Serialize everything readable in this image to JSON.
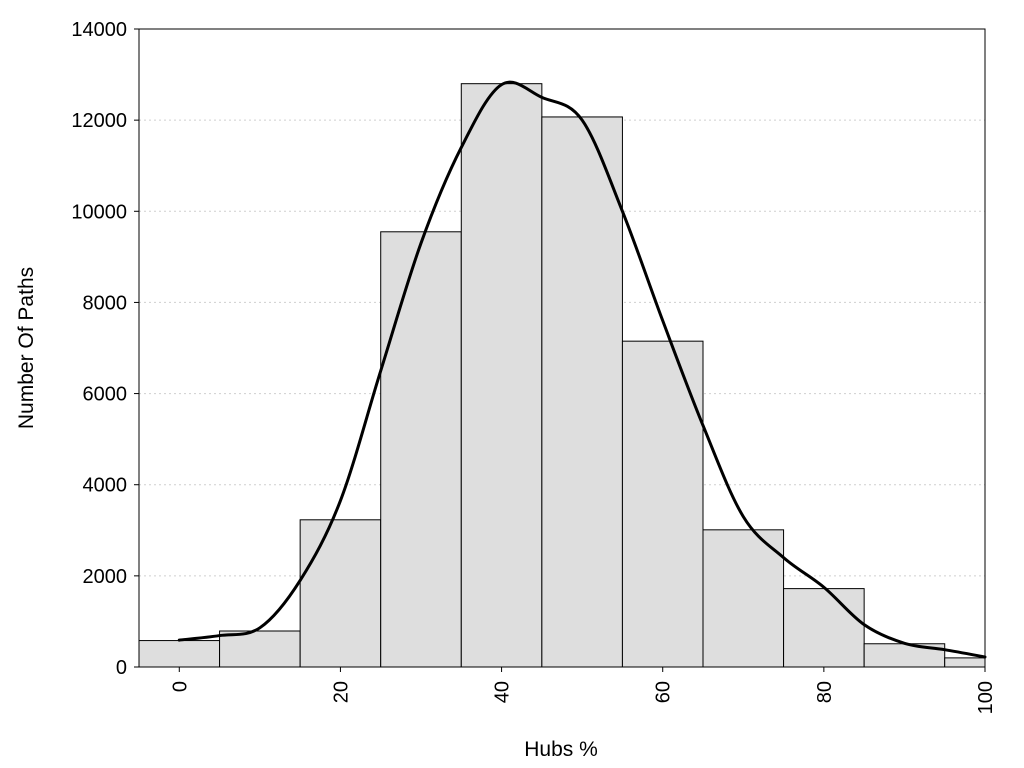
{
  "chart_data": {
    "type": "bar",
    "xlabel": "Hubs %",
    "ylabel": "Number Of Paths",
    "xlim": [
      -5,
      100
    ],
    "ylim": [
      0,
      14000
    ],
    "x_ticks": [
      0,
      20,
      40,
      60,
      80,
      100
    ],
    "y_ticks": [
      0,
      2000,
      4000,
      6000,
      8000,
      10000,
      12000,
      14000
    ],
    "grid": "horizontal dotted",
    "bar_color": "#dedede",
    "line_color": "#000000",
    "bins": [
      {
        "start": -5,
        "end": 5,
        "value": 580
      },
      {
        "start": 5,
        "end": 15,
        "value": 790
      },
      {
        "start": 15,
        "end": 25,
        "value": 3230
      },
      {
        "start": 25,
        "end": 35,
        "value": 9550
      },
      {
        "start": 35,
        "end": 45,
        "value": 12800
      },
      {
        "start": 45,
        "end": 55,
        "value": 12070
      },
      {
        "start": 55,
        "end": 65,
        "value": 7150
      },
      {
        "start": 65,
        "end": 75,
        "value": 3010
      },
      {
        "start": 75,
        "end": 85,
        "value": 1720
      },
      {
        "start": 85,
        "end": 95,
        "value": 510
      },
      {
        "start": 95,
        "end": 100,
        "value": 200
      }
    ],
    "density_curve": {
      "x": [
        0,
        5,
        10,
        15,
        20,
        25,
        30,
        35,
        40,
        45,
        50,
        55,
        60,
        65,
        70,
        75,
        80,
        85,
        90,
        95,
        100
      ],
      "y": [
        590,
        690,
        860,
        1900,
        3650,
        6500,
        9300,
        11400,
        12780,
        12500,
        12000,
        10000,
        7600,
        5300,
        3300,
        2400,
        1750,
        930,
        520,
        380,
        220
      ]
    }
  }
}
